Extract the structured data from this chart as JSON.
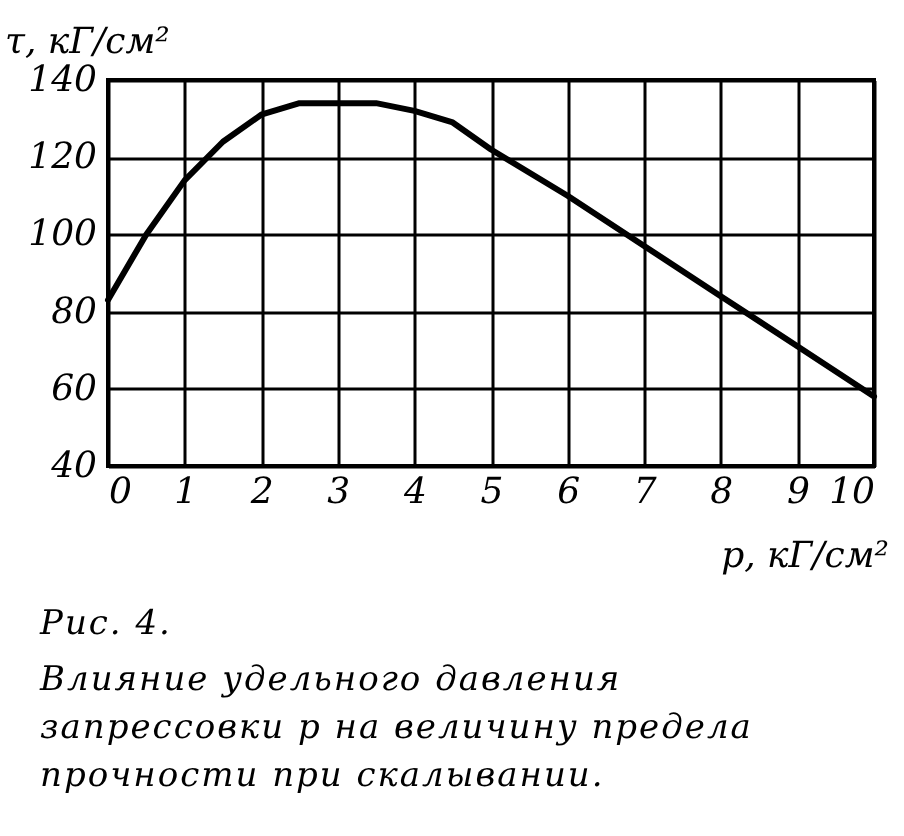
{
  "chart_data": {
    "type": "line",
    "xlabel": "p, кГ/см²",
    "ylabel": "τ, кГ/см²",
    "x": [
      0,
      0.5,
      1,
      1.5,
      2,
      2.5,
      3,
      3.5,
      4,
      4.5,
      5,
      6,
      7,
      8,
      9,
      10
    ],
    "series": [
      {
        "color": "#000000",
        "values": [
          83,
          100,
          114,
          124,
          131,
          134,
          134,
          134,
          132,
          129,
          122,
          110,
          97,
          84,
          71,
          58
        ]
      }
    ],
    "xlim": [
      0,
      10
    ],
    "xticks": [
      0,
      1,
      2,
      3,
      4,
      5,
      6,
      7,
      8,
      9,
      10
    ],
    "ylim": [
      40,
      140
    ],
    "yticks": [
      40,
      60,
      80,
      100,
      120,
      140
    ],
    "grid": true,
    "marker": "none",
    "line_style": "solid",
    "annotations": [
      "Рис. 4.",
      "Влияние удельного давления запрессовки p на величину предела прочности при скалывании."
    ]
  }
}
